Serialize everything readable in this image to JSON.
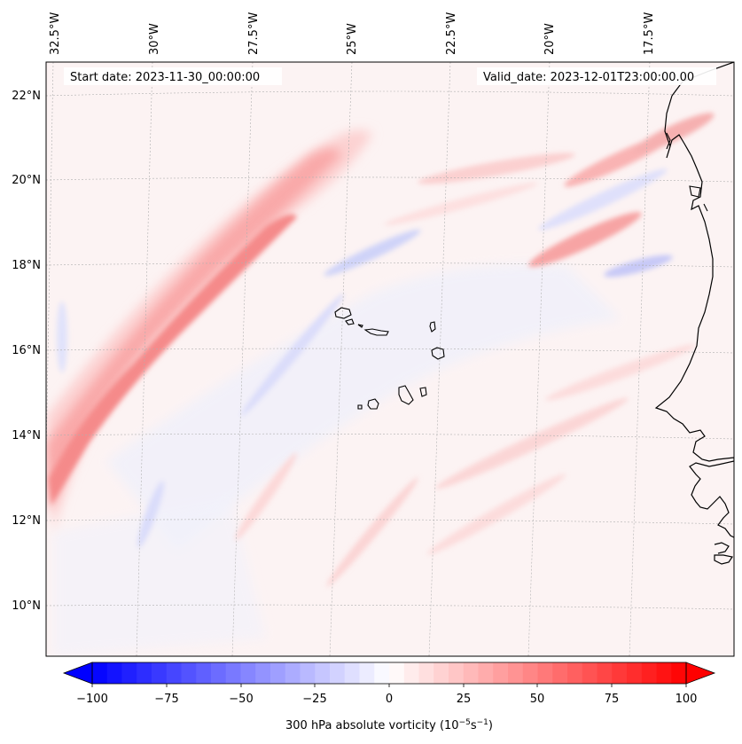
{
  "map": {
    "start_date_text": "Start date: 2023-11-30_00:00:00",
    "valid_date_text": "Valid_date: 2023-12-01T23:00:00.00",
    "lon_labels": [
      "32.5°W",
      "30°W",
      "27.5°W",
      "25°W",
      "22.5°W",
      "20°W",
      "17.5°W"
    ],
    "lat_labels": [
      "22°N",
      "20°N",
      "18°N",
      "16°N",
      "14°N",
      "12°N",
      "10°N"
    ],
    "gridlines": true,
    "features": [
      "Cabo Verde islands",
      "West African coastline"
    ]
  },
  "colorbar": {
    "label": "300 hPa absolute vorticity (10",
    "label_unit_exp1": "−5",
    "label_mid": "s",
    "label_unit_exp2": "−1",
    "label_end": ")",
    "ticks": [
      "−100",
      "−75",
      "−50",
      "−25",
      "0",
      "25",
      "50",
      "75",
      "100"
    ],
    "colormap": "bwr",
    "min_color": "#0000ff",
    "mid_color": "#ffffff",
    "max_color": "#ff0000",
    "extend": "both"
  }
}
